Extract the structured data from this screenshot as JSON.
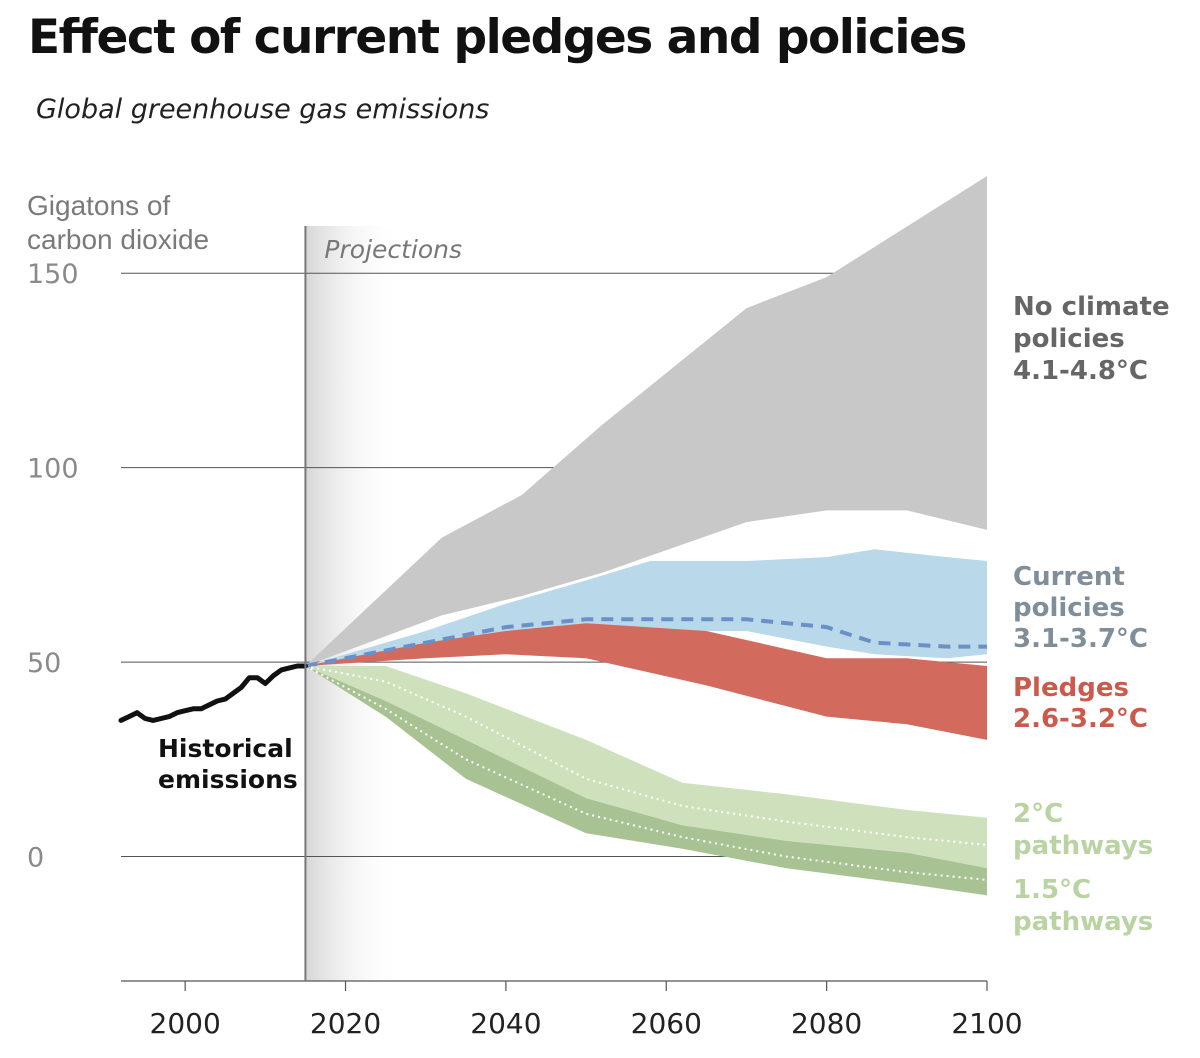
{
  "title": "Effect of current pledges and policies",
  "subtitle": "Global greenhouse gas emissions",
  "chart_data": {
    "type": "area",
    "ylabel_lines": [
      "Gigatons of",
      "carbon dioxide"
    ],
    "yticks": [
      150,
      100,
      50,
      0
    ],
    "xticks": [
      2000,
      2020,
      2040,
      2060,
      2080,
      2100
    ],
    "xlim": [
      1992,
      2100
    ],
    "ylim": [
      -32,
      175
    ],
    "projection_start": 2015,
    "projection_label": "Projections",
    "grid": true,
    "historical": {
      "label_lines": [
        "Historical",
        "emissions"
      ],
      "color": "#111111",
      "x": [
        1992,
        1993,
        1994,
        1995,
        1996,
        1997,
        1998,
        1999,
        2000,
        2001,
        2002,
        2003,
        2004,
        2005,
        2006,
        2007,
        2008,
        2009,
        2010,
        2011,
        2012,
        2013,
        2014,
        2015
      ],
      "y": [
        35,
        36,
        37,
        35.5,
        35,
        35.5,
        36,
        37,
        37.5,
        38,
        38,
        39,
        40,
        40.5,
        42,
        43.5,
        46,
        46,
        44.5,
        46.5,
        48,
        48.5,
        49,
        49
      ]
    },
    "bands": [
      {
        "name": "No climate policies",
        "range_label": "4.1-4.8°C",
        "color": "#c8c8c8",
        "label_color": "#666666",
        "x": [
          2015,
          2032,
          2042,
          2052,
          2070,
          2080,
          2090,
          2100
        ],
        "upper": [
          49,
          82,
          93,
          111,
          141,
          149,
          162,
          175
        ],
        "lower": [
          49,
          62,
          67,
          73,
          86,
          89,
          89,
          84
        ]
      },
      {
        "name": "Current policies",
        "range_label": "3.1-3.7°C",
        "color": "#b9d8e9",
        "label_color": "#7f8e99",
        "x": [
          2015,
          2030,
          2040,
          2050,
          2058,
          2070,
          2080,
          2086,
          2095,
          2100
        ],
        "upper": [
          49,
          58,
          65,
          71,
          76,
          76,
          77,
          79,
          77,
          76
        ],
        "lower": [
          49,
          53,
          56,
          57,
          58,
          58,
          54,
          52,
          51,
          52
        ],
        "median": [
          49,
          55,
          59,
          61,
          61,
          61,
          59,
          55,
          54,
          54
        ]
      },
      {
        "name": "Pledges",
        "range_label": "2.6-3.2°C",
        "color": "#d26a5e",
        "label_color": "#cc5a4c",
        "x": [
          2015,
          2030,
          2040,
          2050,
          2065,
          2080,
          2090,
          2100
        ],
        "upper": [
          49,
          55,
          58,
          60,
          58,
          51,
          51,
          49
        ],
        "lower": [
          49,
          51,
          52,
          51,
          44,
          36,
          34,
          30
        ]
      },
      {
        "name": "2°C",
        "sub": "pathways",
        "color": "#cfe1bc",
        "label_color": "#b9d3a2",
        "x": [
          2015,
          2025,
          2035,
          2050,
          2062,
          2075,
          2090,
          2100
        ],
        "upper": [
          49,
          49,
          42,
          30,
          19,
          16,
          12,
          10
        ],
        "lower": [
          49,
          40,
          28,
          10,
          4,
          0,
          -4,
          -6
        ],
        "median": [
          49,
          45,
          36,
          20,
          13,
          9,
          5,
          3
        ]
      },
      {
        "name": "1.5°C",
        "sub": "pathways",
        "color": "#a8c293",
        "label_color": "#b9d3a2",
        "x": [
          2015,
          2025,
          2035,
          2050,
          2062,
          2075,
          2090,
          2100
        ],
        "upper": [
          49,
          40,
          30,
          15,
          8,
          4,
          1,
          -3
        ],
        "lower": [
          49,
          36,
          20,
          6,
          2,
          -3,
          -7,
          -10
        ],
        "median": [
          49,
          38,
          25,
          11,
          5,
          0,
          -4,
          -6
        ]
      }
    ]
  }
}
